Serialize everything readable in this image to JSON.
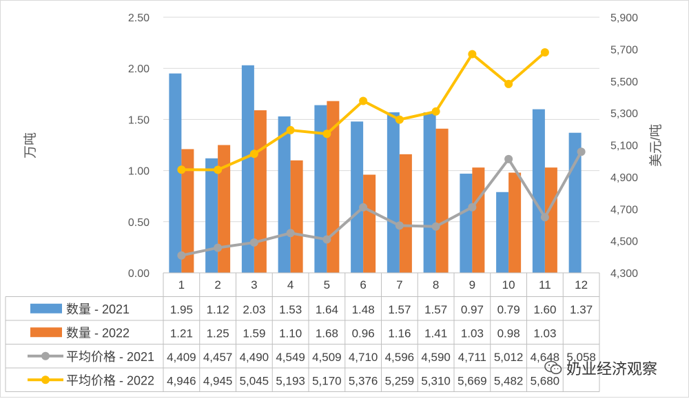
{
  "chart_data": {
    "type": "bar",
    "categories": [
      "1",
      "2",
      "3",
      "4",
      "5",
      "6",
      "7",
      "8",
      "9",
      "10",
      "11",
      "12"
    ],
    "left_axis": {
      "label": "万吨",
      "ylim": [
        0,
        2.5
      ],
      "ticks": [
        "0.00",
        "0.50",
        "1.00",
        "1.50",
        "2.00",
        "2.50"
      ]
    },
    "right_axis": {
      "label": "美元/吨",
      "ylim": [
        4300,
        5900
      ],
      "ticks": [
        "4,300",
        "4,500",
        "4,700",
        "4,900",
        "5,100",
        "5,300",
        "5,500",
        "5,700",
        "5,900"
      ]
    },
    "series": [
      {
        "name": "数量 - 2021",
        "type": "bar",
        "axis": "left",
        "color": "#5b9bd5",
        "values": [
          1.95,
          1.12,
          2.03,
          1.53,
          1.64,
          1.48,
          1.57,
          1.57,
          0.97,
          0.79,
          1.6,
          1.37
        ],
        "labels": [
          "1.95",
          "1.12",
          "2.03",
          "1.53",
          "1.64",
          "1.48",
          "1.57",
          "1.57",
          "0.97",
          "0.79",
          "1.60",
          "1.37"
        ]
      },
      {
        "name": "数量 - 2022",
        "type": "bar",
        "axis": "left",
        "color": "#ed7d31",
        "values": [
          1.21,
          1.25,
          1.59,
          1.1,
          1.68,
          0.96,
          1.16,
          1.41,
          1.03,
          0.98,
          1.03,
          null
        ],
        "labels": [
          "1.21",
          "1.25",
          "1.59",
          "1.10",
          "1.68",
          "0.96",
          "1.16",
          "1.41",
          "1.03",
          "0.98",
          "1.03",
          ""
        ]
      },
      {
        "name": "平均价格 - 2021",
        "type": "line",
        "axis": "right",
        "color": "#a5a5a5",
        "values": [
          4409,
          4457,
          4490,
          4549,
          4509,
          4710,
          4596,
          4590,
          4711,
          5012,
          4648,
          5058
        ],
        "labels": [
          "4,409",
          "4,457",
          "4,490",
          "4,549",
          "4,509",
          "4,710",
          "4,596",
          "4,590",
          "4,711",
          "5,012",
          "4,648",
          "5,058"
        ]
      },
      {
        "name": "平均价格 - 2022",
        "type": "line",
        "axis": "right",
        "color": "#ffc000",
        "values": [
          4946,
          4945,
          5045,
          5193,
          5170,
          5376,
          5259,
          5310,
          5669,
          5482,
          5680,
          null
        ],
        "labels": [
          "4,946",
          "4,945",
          "5,045",
          "5,193",
          "5,170",
          "5,376",
          "5,259",
          "5,310",
          "5,669",
          "5,482",
          "5,680",
          ""
        ]
      }
    ]
  },
  "watermark": {
    "text": "奶业经济观察",
    "icon": "wechat-icon"
  }
}
